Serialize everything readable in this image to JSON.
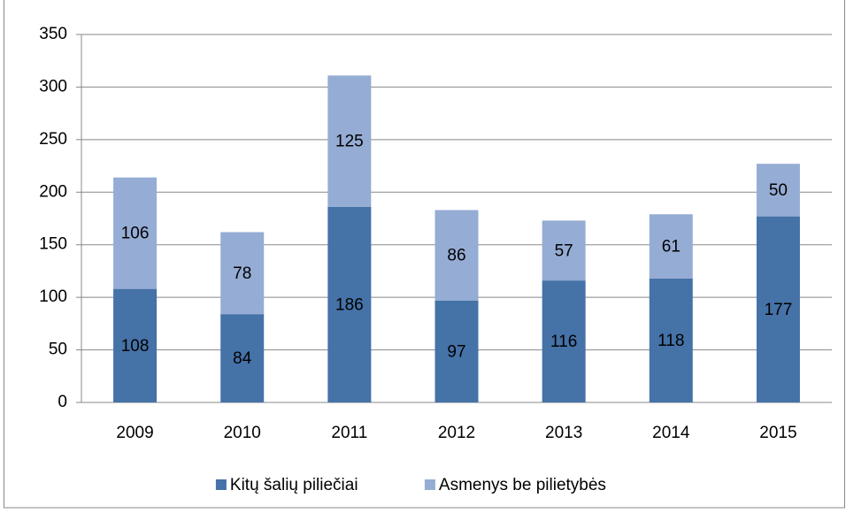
{
  "chart_data": {
    "type": "stacked_bar",
    "categories": [
      "2009",
      "2010",
      "2011",
      "2012",
      "2013",
      "2014",
      "2015"
    ],
    "series": [
      {
        "name": "Kitų šalių piliečiai",
        "color": "#4572a7",
        "values": [
          108,
          84,
          186,
          97,
          116,
          118,
          177
        ]
      },
      {
        "name": "Asmenys be pilietybės",
        "color": "#95acd4",
        "values": [
          106,
          78,
          125,
          86,
          57,
          61,
          50
        ]
      }
    ],
    "ylim": [
      0,
      350
    ],
    "yticks": [
      0,
      50,
      100,
      150,
      200,
      250,
      300,
      350
    ],
    "grid": true,
    "legend": "bottom"
  }
}
